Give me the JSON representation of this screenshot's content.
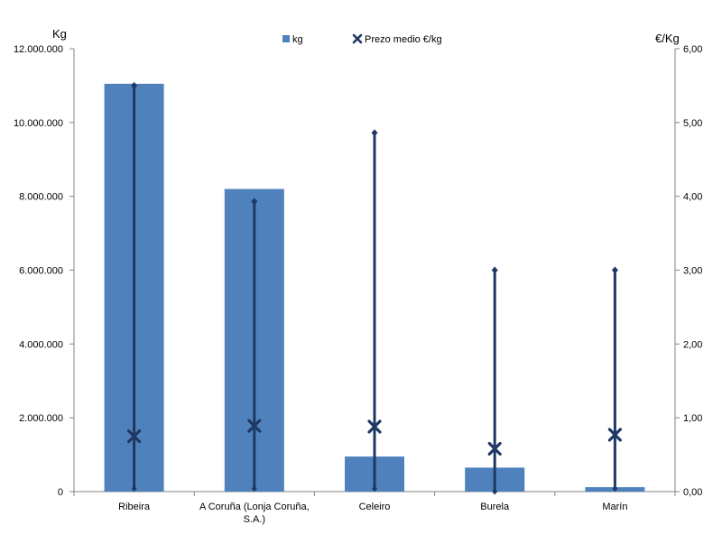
{
  "chart_data": {
    "type": "bar",
    "categories": [
      "Ribeira",
      "A Coruña (Lonja Coruña, S.A.)",
      "Celeiro",
      "Burela",
      "Marín"
    ],
    "category_lines": [
      [
        "Ribeira"
      ],
      [
        "A Coruña (Lonja Coruña,",
        "S.A.)"
      ],
      [
        "Celeiro"
      ],
      [
        "Burela"
      ],
      [
        "Marín"
      ]
    ],
    "y_left": {
      "label": "Kg",
      "range": [
        0,
        12000000
      ],
      "ticks": [
        "0",
        "2.000.000",
        "4.000.000",
        "6.000.000",
        "8.000.000",
        "10.000.000",
        "12.000.000"
      ]
    },
    "y_right": {
      "label": "€/Kg",
      "range": [
        0,
        6
      ],
      "ticks": [
        "0,00",
        "1,00",
        "2,00",
        "3,00",
        "4,00",
        "5,00",
        "6,00"
      ]
    },
    "series": [
      {
        "name": "kg",
        "kind": "bar",
        "axis": "left",
        "color": "#4f81bd",
        "values": [
          11050000,
          8200000,
          950000,
          650000,
          120000
        ]
      },
      {
        "name": "Prezo medio €/kg",
        "kind": "marker",
        "marker": "x",
        "axis": "right",
        "color": "#1f3864",
        "values": [
          0.75,
          0.89,
          0.88,
          0.58,
          0.77
        ],
        "high": [
          5.5,
          3.93,
          4.86,
          3.0,
          3.0
        ],
        "low": [
          0.04,
          0.04,
          0.04,
          0.0,
          0.04
        ]
      }
    ],
    "legend": {
      "position": "top",
      "entries": [
        "kg",
        "Prezo medio €/kg"
      ]
    },
    "grid": false
  }
}
